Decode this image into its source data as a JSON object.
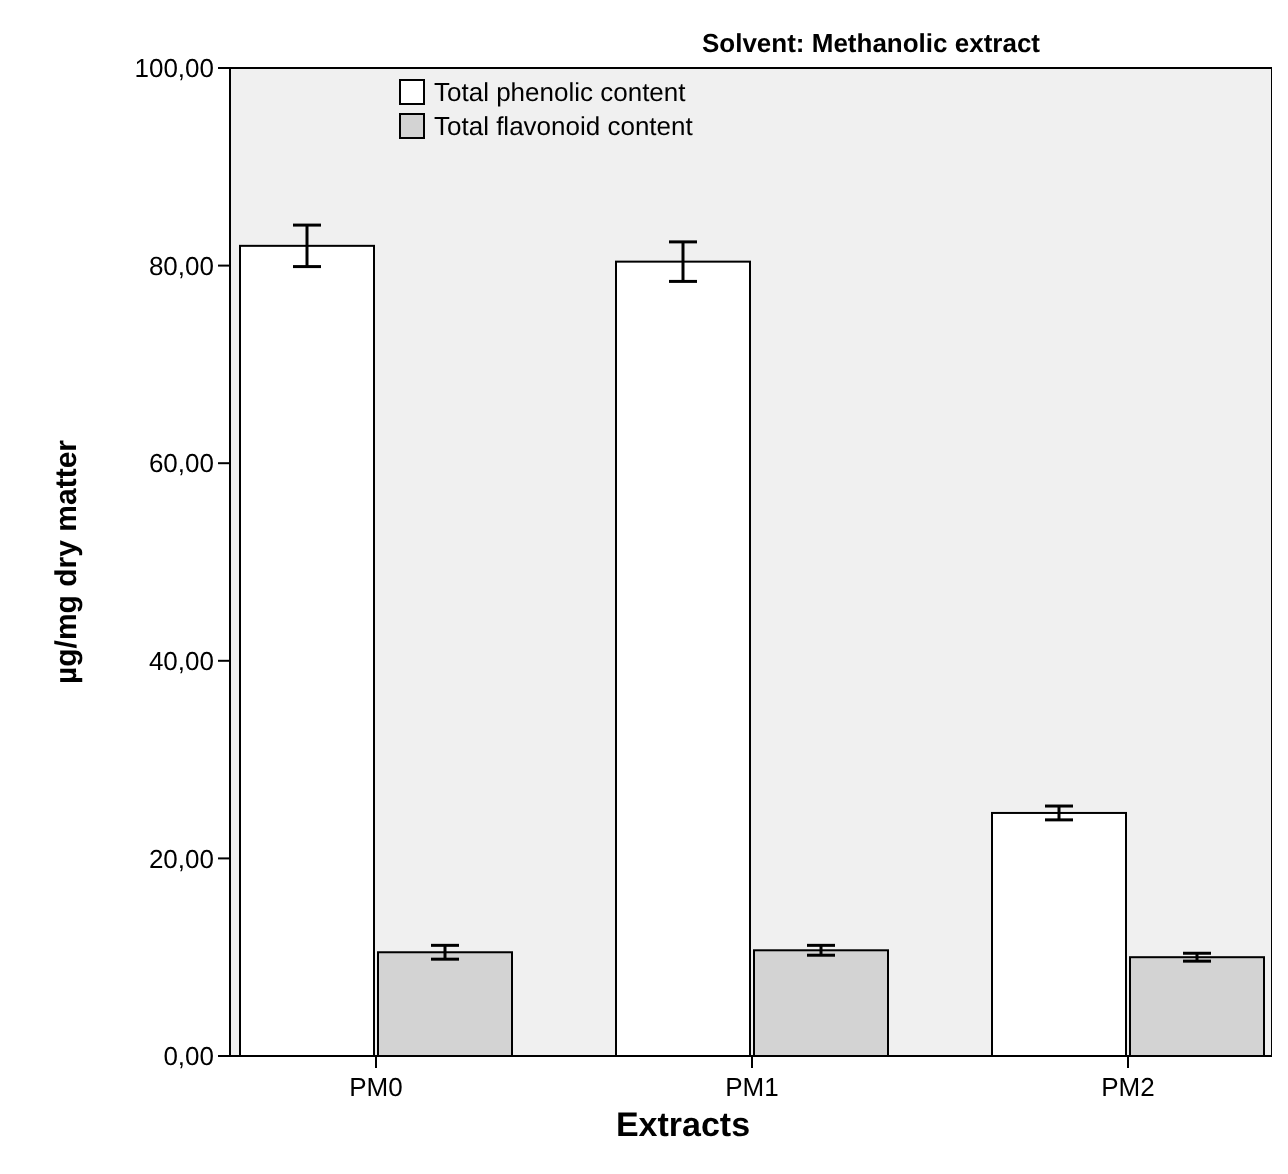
{
  "chart_data": {
    "type": "bar",
    "title": "Solvent: Methanolic extract",
    "xlabel": "Extracts",
    "ylabel": "µg/mg dry matter",
    "categories": [
      "PM0",
      "PM1",
      "PM2"
    ],
    "series": [
      {
        "name": "Total phenolic content",
        "color": "#ffffff",
        "values": [
          82.0,
          80.4,
          24.6
        ],
        "errors": [
          2.1,
          2.0,
          0.7
        ]
      },
      {
        "name": "Total flavonoid content",
        "color": "#d3d3d3",
        "values": [
          10.5,
          10.7,
          10.0
        ],
        "errors": [
          0.7,
          0.5,
          0.4
        ]
      }
    ],
    "ylim": [
      0,
      100
    ],
    "yticks": [
      {
        "value": 0,
        "label": "0,00"
      },
      {
        "value": 20,
        "label": "20,00"
      },
      {
        "value": 40,
        "label": "40,00"
      },
      {
        "value": 60,
        "label": "60,00"
      },
      {
        "value": 80,
        "label": "80,00"
      },
      {
        "value": 100,
        "label": "100,00"
      }
    ],
    "grid": false,
    "legend": "top left"
  }
}
